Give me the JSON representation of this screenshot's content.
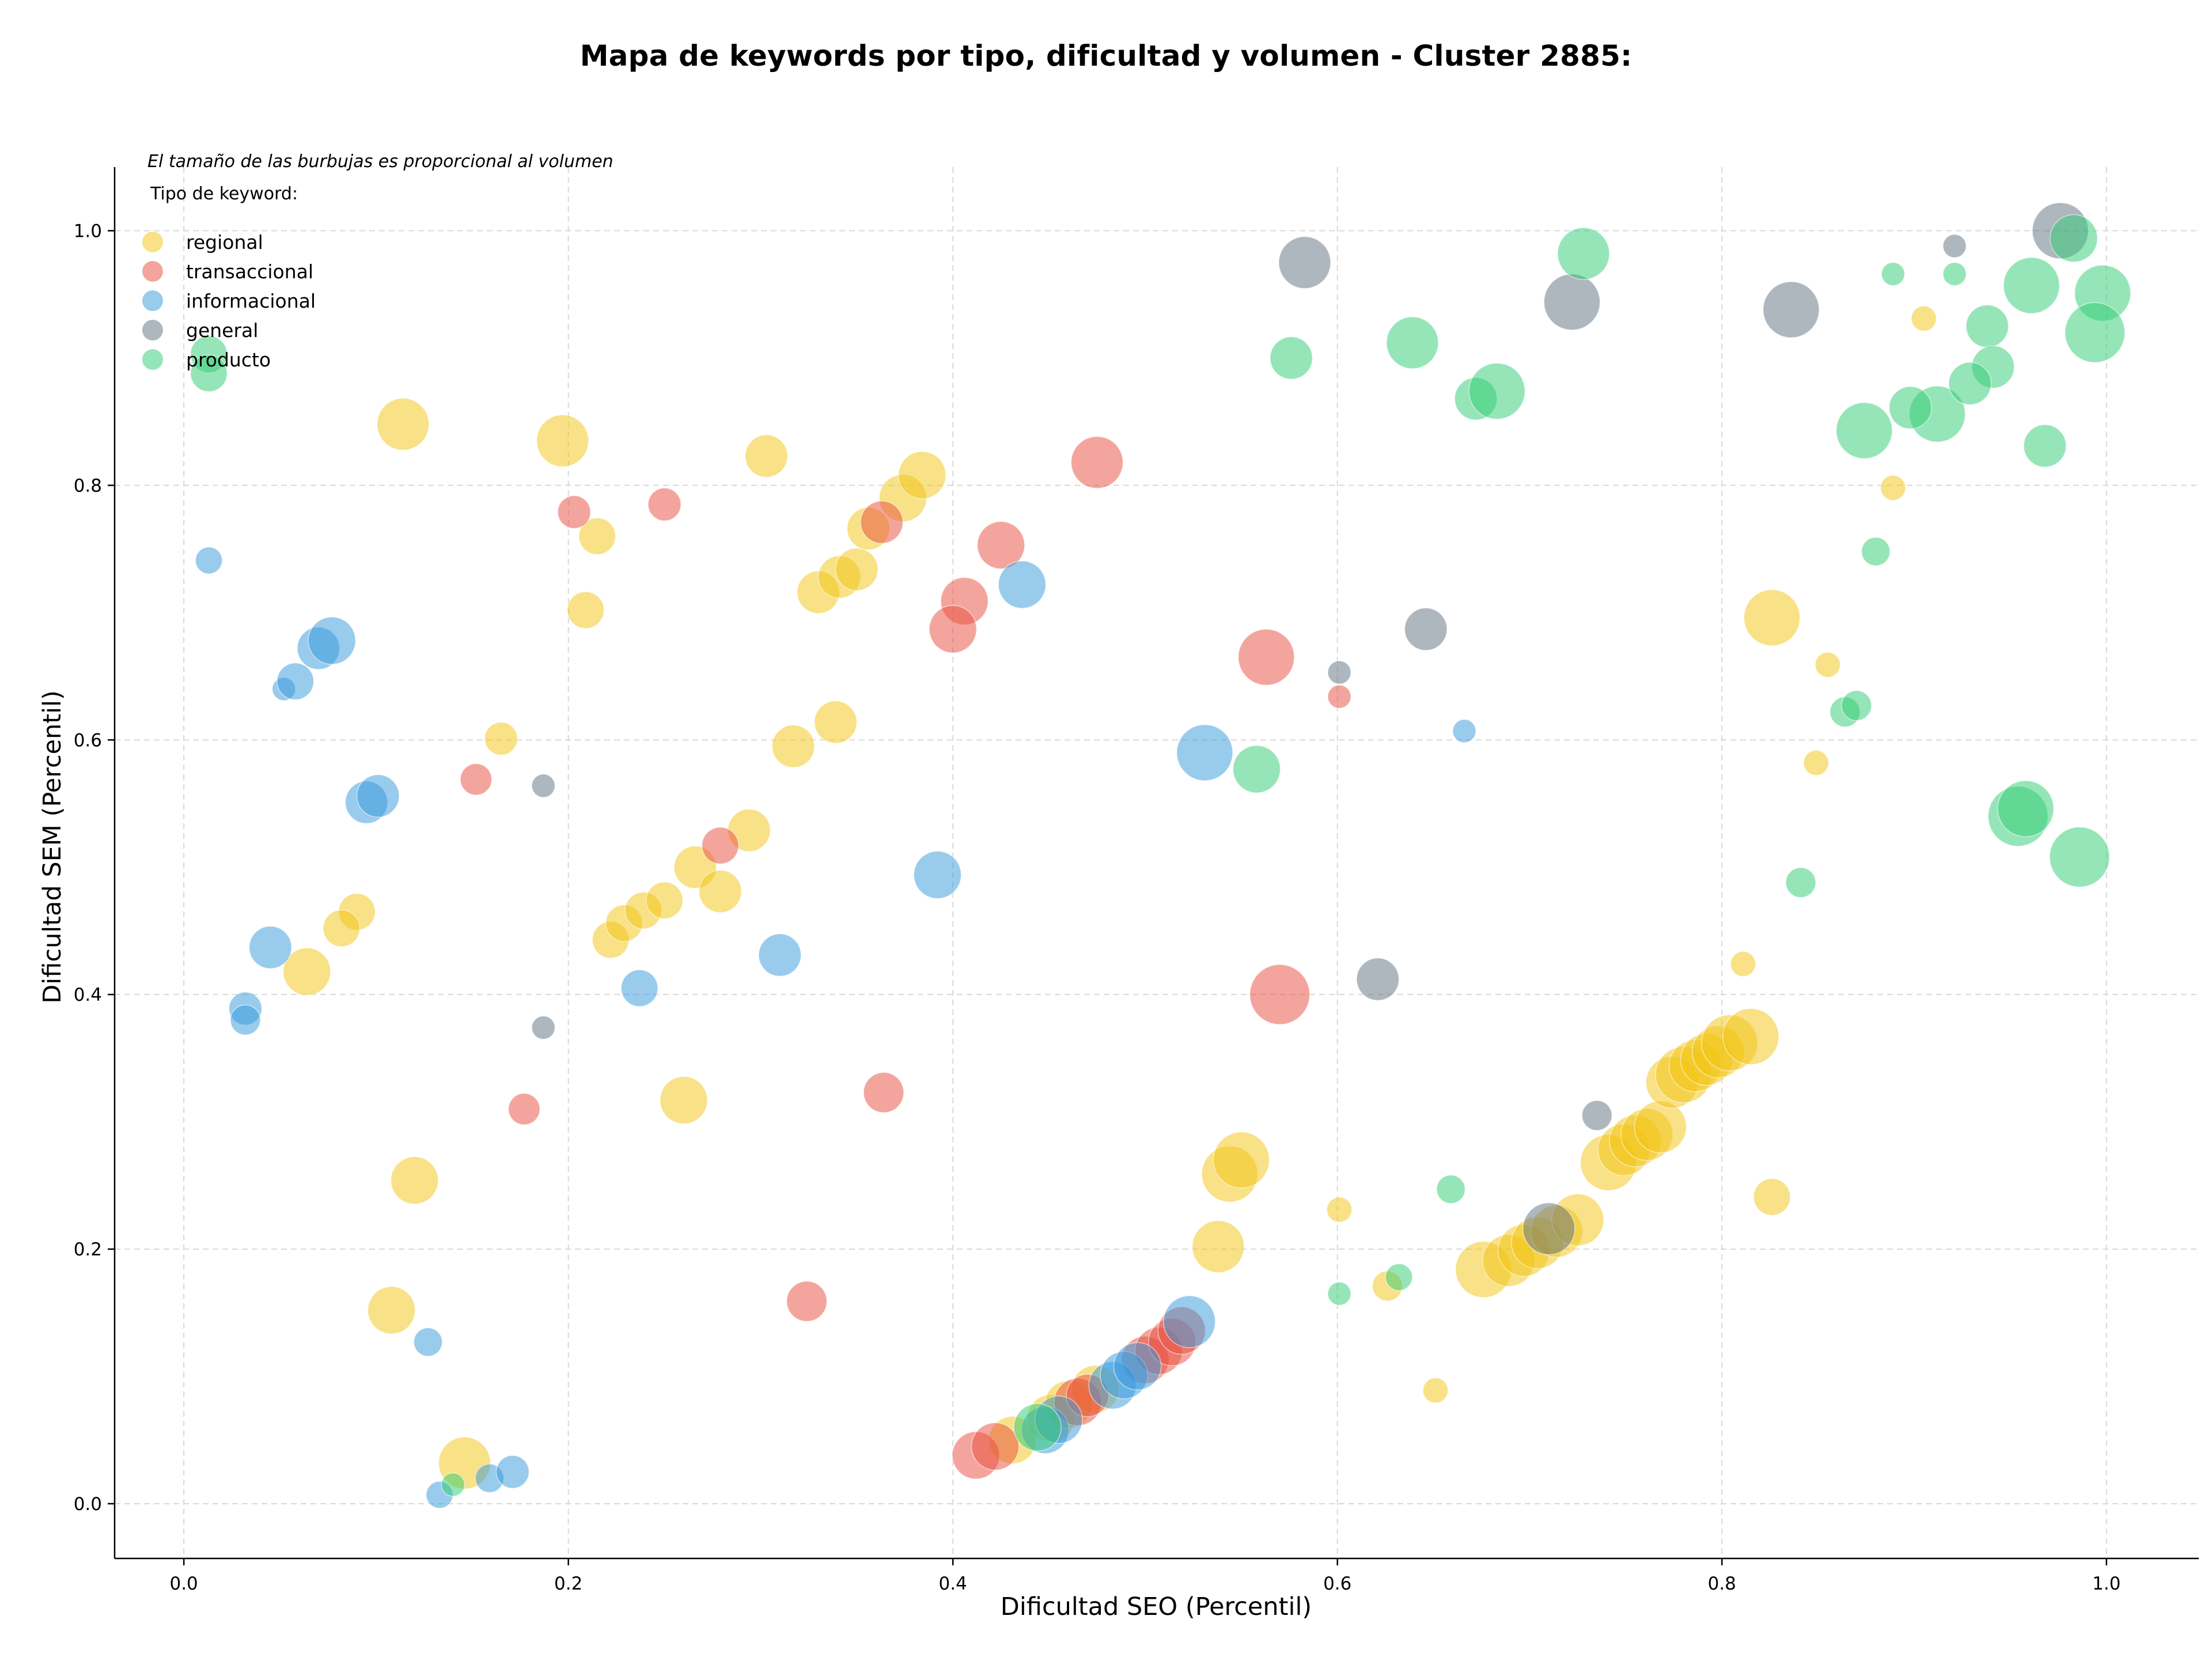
{
  "chart_data": {
    "type": "scatter",
    "title": "Mapa de keywords por tipo, dificultad y volumen - Cluster 2885:",
    "xlabel": "Dificultad SEO (Percentil)",
    "ylabel": "Dificultad SEM (Percentil)",
    "xlim": [
      -0.036,
      1.048
    ],
    "ylim": [
      -0.043,
      1.05
    ],
    "xticks": [
      "0.0",
      "0.2",
      "0.4",
      "0.6",
      "0.8",
      "1.0"
    ],
    "yticks": [
      "0.0",
      "0.2",
      "0.4",
      "0.6",
      "0.8",
      "1.0"
    ],
    "grid": true,
    "note": "El tamaño de las burbujas es proporcional al volumen",
    "legend_title": "Tipo de keyword:",
    "legend_position": "top-left",
    "series": [
      {
        "name": "regional",
        "color": "#f1c40f",
        "points": [
          [
            0.114,
            0.848,
            3
          ],
          [
            0.197,
            0.835,
            3
          ],
          [
            0.303,
            0.823,
            2
          ],
          [
            0.215,
            0.76,
            1.5
          ],
          [
            0.209,
            0.702,
            1.5
          ],
          [
            0.165,
            0.601,
            1.2
          ],
          [
            0.317,
            0.595,
            2
          ],
          [
            0.339,
            0.614,
            2
          ],
          [
            0.33,
            0.716,
            2
          ],
          [
            0.341,
            0.728,
            2
          ],
          [
            0.35,
            0.734,
            2
          ],
          [
            0.356,
            0.766,
            2
          ],
          [
            0.374,
            0.79,
            2.5
          ],
          [
            0.384,
            0.808,
            2.5
          ],
          [
            0.09,
            0.465,
            1.5
          ],
          [
            0.082,
            0.452,
            1.5
          ],
          [
            0.064,
            0.418,
            2.5
          ],
          [
            0.222,
            0.443,
            1.5
          ],
          [
            0.229,
            0.456,
            1.5
          ],
          [
            0.239,
            0.466,
            1.5
          ],
          [
            0.25,
            0.474,
            1.5
          ],
          [
            0.266,
            0.5,
            2
          ],
          [
            0.279,
            0.481,
            2
          ],
          [
            0.294,
            0.529,
            2
          ],
          [
            0.26,
            0.317,
            2.5
          ],
          [
            0.12,
            0.254,
            2.5
          ],
          [
            0.108,
            0.152,
            2.5
          ],
          [
            0.146,
            0.032,
            3
          ],
          [
            0.826,
            0.696,
            3.5
          ],
          [
            0.855,
            0.659,
            0.7
          ],
          [
            0.849,
            0.582,
            0.7
          ],
          [
            0.889,
            0.798,
            0.7
          ],
          [
            0.905,
            0.931,
            0.7
          ],
          [
            0.811,
            0.424,
            0.7
          ],
          [
            0.826,
            0.241,
            1.5
          ],
          [
            0.601,
            0.231,
            0.7
          ],
          [
            0.626,
            0.171,
            1
          ],
          [
            0.651,
            0.089,
            0.7
          ],
          [
            0.538,
            0.202,
            3
          ],
          [
            0.544,
            0.259,
            3.5
          ],
          [
            0.55,
            0.27,
            3.5
          ],
          [
            0.676,
            0.184,
            3.5
          ],
          [
            0.689,
            0.191,
            3
          ],
          [
            0.697,
            0.199,
            3
          ],
          [
            0.704,
            0.205,
            3
          ],
          [
            0.714,
            0.214,
            3
          ],
          [
            0.725,
            0.223,
            3
          ],
          [
            0.741,
            0.268,
            3.5
          ],
          [
            0.749,
            0.278,
            3
          ],
          [
            0.755,
            0.285,
            3
          ],
          [
            0.761,
            0.29,
            3
          ],
          [
            0.768,
            0.296,
            3
          ],
          [
            0.774,
            0.331,
            3
          ],
          [
            0.78,
            0.337,
            3.5
          ],
          [
            0.786,
            0.344,
            3
          ],
          [
            0.792,
            0.349,
            3
          ],
          [
            0.798,
            0.355,
            3
          ],
          [
            0.804,
            0.362,
            3.5
          ],
          [
            0.815,
            0.367,
            3.5
          ],
          [
            0.431,
            0.05,
            2.5
          ],
          [
            0.451,
            0.067,
            2.5
          ],
          [
            0.46,
            0.078,
            2.5
          ],
          [
            0.474,
            0.09,
            2.5
          ]
        ]
      },
      {
        "name": "transaccional",
        "color": "#e74c3c",
        "points": [
          [
            0.203,
            0.779,
            1.2
          ],
          [
            0.25,
            0.785,
            1.2
          ],
          [
            0.152,
            0.569,
            1.1
          ],
          [
            0.177,
            0.31,
            1.1
          ],
          [
            0.324,
            0.159,
            1.8
          ],
          [
            0.364,
            0.323,
            1.8
          ],
          [
            0.363,
            0.771,
            2
          ],
          [
            0.425,
            0.753,
            2.5
          ],
          [
            0.406,
            0.709,
            2.5
          ],
          [
            0.4,
            0.687,
            2.5
          ],
          [
            0.475,
            0.818,
            3
          ],
          [
            0.563,
            0.665,
            3.5
          ],
          [
            0.57,
            0.4,
            4
          ],
          [
            0.601,
            0.634,
            0.6
          ],
          [
            0.279,
            0.517,
            1.5
          ],
          [
            0.412,
            0.038,
            2.5
          ],
          [
            0.422,
            0.045,
            2.5
          ],
          [
            0.465,
            0.08,
            2.5
          ],
          [
            0.47,
            0.085,
            2
          ],
          [
            0.5,
            0.113,
            2.5
          ],
          [
            0.507,
            0.12,
            2.5
          ],
          [
            0.514,
            0.127,
            2.5
          ],
          [
            0.519,
            0.136,
            2.5
          ]
        ]
      },
      {
        "name": "informacional",
        "color": "#3498db",
        "points": [
          [
            0.013,
            0.741,
            0.8
          ],
          [
            0.052,
            0.64,
            0.6
          ],
          [
            0.058,
            0.646,
            1.5
          ],
          [
            0.07,
            0.672,
            2
          ],
          [
            0.077,
            0.678,
            2.5
          ],
          [
            0.095,
            0.551,
            2
          ],
          [
            0.101,
            0.556,
            2
          ],
          [
            0.045,
            0.437,
            2
          ],
          [
            0.032,
            0.389,
            1.2
          ],
          [
            0.032,
            0.38,
            1
          ],
          [
            0.237,
            0.405,
            1.5
          ],
          [
            0.31,
            0.431,
            2
          ],
          [
            0.392,
            0.494,
            2.5
          ],
          [
            0.436,
            0.722,
            2.5
          ],
          [
            0.531,
            0.59,
            3.5
          ],
          [
            0.666,
            0.607,
            0.6
          ],
          [
            0.127,
            0.127,
            0.9
          ],
          [
            0.133,
            0.007,
            0.8
          ],
          [
            0.159,
            0.02,
            0.9
          ],
          [
            0.171,
            0.025,
            1.2
          ],
          [
            0.448,
            0.058,
            2.5
          ],
          [
            0.455,
            0.066,
            2.5
          ],
          [
            0.483,
            0.093,
            2.5
          ],
          [
            0.489,
            0.101,
            2.5
          ],
          [
            0.496,
            0.108,
            2.5
          ],
          [
            0.523,
            0.143,
            3
          ]
        ]
      },
      {
        "name": "general",
        "color": "#5d6d7e",
        "points": [
          [
            0.187,
            0.564,
            0.6
          ],
          [
            0.187,
            0.374,
            0.6
          ],
          [
            0.583,
            0.975,
            3
          ],
          [
            0.722,
            0.944,
            3.5
          ],
          [
            0.836,
            0.938,
            3.5
          ],
          [
            0.976,
            1.0,
            3.5
          ],
          [
            0.921,
            0.988,
            0.6
          ],
          [
            0.601,
            0.653,
            0.6
          ],
          [
            0.646,
            0.687,
            2
          ],
          [
            0.621,
            0.412,
            2
          ],
          [
            0.735,
            0.305,
            1
          ],
          [
            0.71,
            0.216,
            3
          ]
        ]
      },
      {
        "name": "producto",
        "color": "#2ecc71",
        "points": [
          [
            0.013,
            0.903,
            1.5
          ],
          [
            0.013,
            0.888,
            1.5
          ],
          [
            0.576,
            0.9,
            2
          ],
          [
            0.639,
            0.912,
            3
          ],
          [
            0.672,
            0.868,
            2
          ],
          [
            0.683,
            0.874,
            3.5
          ],
          [
            0.728,
            0.982,
            3
          ],
          [
            0.889,
            0.966,
            0.6
          ],
          [
            0.921,
            0.966,
            0.6
          ],
          [
            0.938,
            0.925,
            2
          ],
          [
            0.941,
            0.893,
            2
          ],
          [
            0.961,
            0.957,
            3.5
          ],
          [
            0.983,
            0.994,
            2.5
          ],
          [
            0.998,
            0.951,
            3.5
          ],
          [
            0.994,
            0.92,
            4
          ],
          [
            0.968,
            0.831,
            2
          ],
          [
            0.912,
            0.856,
            3.5
          ],
          [
            0.898,
            0.861,
            2
          ],
          [
            0.874,
            0.843,
            3.5
          ],
          [
            0.929,
            0.88,
            2
          ],
          [
            0.88,
            0.748,
            0.9
          ],
          [
            0.864,
            0.622,
            1
          ],
          [
            0.87,
            0.627,
            1
          ],
          [
            0.841,
            0.488,
            1
          ],
          [
            0.558,
            0.577,
            2.5
          ],
          [
            0.954,
            0.54,
            4
          ],
          [
            0.958,
            0.546,
            3.5
          ],
          [
            0.986,
            0.508,
            4
          ],
          [
            0.659,
            0.247,
            0.9
          ],
          [
            0.632,
            0.178,
            0.8
          ],
          [
            0.601,
            0.165,
            0.6
          ],
          [
            0.14,
            0.015,
            0.6
          ],
          [
            0.444,
            0.06,
            2.5
          ]
        ]
      }
    ]
  }
}
